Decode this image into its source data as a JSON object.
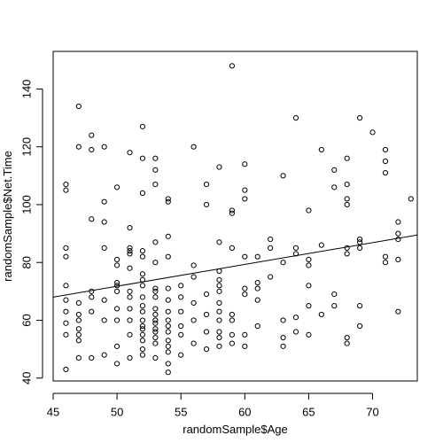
{
  "chart_data": {
    "type": "scatter",
    "title": "",
    "xlabel": "randomSample$Age",
    "ylabel": "randomSample$Net.Time",
    "xlim": [
      45,
      73.5
    ],
    "ylim": [
      39,
      153
    ],
    "x_ticks": [
      45,
      50,
      55,
      60,
      65,
      70
    ],
    "y_ticks": [
      40,
      60,
      80,
      100,
      120,
      140
    ],
    "x_tick_labels": [
      "45",
      "50",
      "55",
      "60",
      "65",
      "70"
    ],
    "y_tick_labels": [
      "40",
      "60",
      "80",
      "100",
      "120",
      "140"
    ],
    "grid": false,
    "legend": "none",
    "regression_line": {
      "x": [
        45,
        73.5
      ],
      "y": [
        68,
        89.5
      ]
    },
    "series": [
      {
        "points": [
          [
            46,
            43
          ],
          [
            46,
            55
          ],
          [
            46,
            59
          ],
          [
            46,
            63
          ],
          [
            46,
            67
          ],
          [
            46,
            72
          ],
          [
            46,
            82
          ],
          [
            46,
            85
          ],
          [
            46,
            105
          ],
          [
            46,
            107
          ],
          [
            47,
            47
          ],
          [
            47,
            53
          ],
          [
            47,
            55
          ],
          [
            47,
            57
          ],
          [
            47,
            60
          ],
          [
            47,
            62
          ],
          [
            47,
            66
          ],
          [
            47,
            120
          ],
          [
            47,
            134
          ],
          [
            48,
            47
          ],
          [
            48,
            63
          ],
          [
            48,
            68
          ],
          [
            48,
            70
          ],
          [
            48,
            95
          ],
          [
            48,
            119
          ],
          [
            48,
            124
          ],
          [
            49,
            48
          ],
          [
            49,
            60
          ],
          [
            49,
            67
          ],
          [
            49,
            85
          ],
          [
            49,
            94
          ],
          [
            49,
            101
          ],
          [
            49,
            120
          ],
          [
            50,
            45
          ],
          [
            50,
            51
          ],
          [
            50,
            60
          ],
          [
            50,
            64
          ],
          [
            50,
            70
          ],
          [
            50,
            72
          ],
          [
            50,
            73
          ],
          [
            50,
            79
          ],
          [
            50,
            81
          ],
          [
            50,
            106
          ],
          [
            51,
            47
          ],
          [
            51,
            55
          ],
          [
            51,
            60
          ],
          [
            51,
            64
          ],
          [
            51,
            68
          ],
          [
            51,
            70
          ],
          [
            51,
            78
          ],
          [
            51,
            83
          ],
          [
            51,
            84
          ],
          [
            51,
            85
          ],
          [
            51,
            92
          ],
          [
            51,
            118
          ],
          [
            52,
            48
          ],
          [
            52,
            50
          ],
          [
            52,
            53
          ],
          [
            52,
            55
          ],
          [
            52,
            57
          ],
          [
            52,
            58
          ],
          [
            52,
            60
          ],
          [
            52,
            63
          ],
          [
            52,
            65
          ],
          [
            52,
            68
          ],
          [
            52,
            72
          ],
          [
            52,
            74
          ],
          [
            52,
            76
          ],
          [
            52,
            82
          ],
          [
            52,
            84
          ],
          [
            52,
            104
          ],
          [
            52,
            116
          ],
          [
            52,
            127
          ],
          [
            53,
            47
          ],
          [
            53,
            52
          ],
          [
            53,
            54
          ],
          [
            53,
            56
          ],
          [
            53,
            57
          ],
          [
            53,
            59
          ],
          [
            53,
            60
          ],
          [
            53,
            62
          ],
          [
            53,
            64
          ],
          [
            53,
            68
          ],
          [
            53,
            70
          ],
          [
            53,
            71
          ],
          [
            53,
            80
          ],
          [
            53,
            87
          ],
          [
            53,
            107
          ],
          [
            53,
            112
          ],
          [
            53,
            116
          ],
          [
            54,
            42
          ],
          [
            54,
            45
          ],
          [
            54,
            49
          ],
          [
            54,
            51
          ],
          [
            54,
            53
          ],
          [
            54,
            56
          ],
          [
            54,
            58
          ],
          [
            54,
            60
          ],
          [
            54,
            63
          ],
          [
            54,
            67
          ],
          [
            54,
            71
          ],
          [
            54,
            82
          ],
          [
            54,
            89
          ],
          [
            54,
            101
          ],
          [
            54,
            102
          ],
          [
            55,
            48
          ],
          [
            55,
            55
          ],
          [
            55,
            58
          ],
          [
            55,
            63
          ],
          [
            55,
            68
          ],
          [
            55,
            72
          ],
          [
            56,
            52
          ],
          [
            56,
            60
          ],
          [
            56,
            66
          ],
          [
            56,
            75
          ],
          [
            56,
            79
          ],
          [
            56,
            120
          ],
          [
            57,
            50
          ],
          [
            57,
            56
          ],
          [
            57,
            62
          ],
          [
            57,
            69
          ],
          [
            57,
            100
          ],
          [
            57,
            107
          ],
          [
            58,
            51
          ],
          [
            58,
            54
          ],
          [
            58,
            56
          ],
          [
            58,
            60
          ],
          [
            58,
            63
          ],
          [
            58,
            66
          ],
          [
            58,
            70
          ],
          [
            58,
            72
          ],
          [
            58,
            74
          ],
          [
            58,
            77
          ],
          [
            58,
            87
          ],
          [
            58,
            113
          ],
          [
            59,
            52
          ],
          [
            59,
            55
          ],
          [
            59,
            60
          ],
          [
            59,
            62
          ],
          [
            59,
            85
          ],
          [
            59,
            97
          ],
          [
            59,
            98
          ],
          [
            59,
            148
          ],
          [
            60,
            51
          ],
          [
            60,
            55
          ],
          [
            60,
            69
          ],
          [
            60,
            71
          ],
          [
            60,
            82
          ],
          [
            60,
            102
          ],
          [
            60,
            105
          ],
          [
            60,
            114
          ],
          [
            61,
            58
          ],
          [
            61,
            67
          ],
          [
            61,
            71
          ],
          [
            61,
            73
          ],
          [
            61,
            82
          ],
          [
            62,
            75
          ],
          [
            62,
            85
          ],
          [
            62,
            88
          ],
          [
            63,
            51
          ],
          [
            63,
            54
          ],
          [
            63,
            60
          ],
          [
            63,
            80
          ],
          [
            63,
            110
          ],
          [
            64,
            56
          ],
          [
            64,
            61
          ],
          [
            64,
            83
          ],
          [
            64,
            85
          ],
          [
            64,
            130
          ],
          [
            65,
            55
          ],
          [
            65,
            65
          ],
          [
            65,
            72
          ],
          [
            65,
            79
          ],
          [
            65,
            81
          ],
          [
            65,
            98
          ],
          [
            66,
            62
          ],
          [
            66,
            86
          ],
          [
            66,
            119
          ],
          [
            67,
            65
          ],
          [
            67,
            69
          ],
          [
            67,
            106
          ],
          [
            67,
            112
          ],
          [
            68,
            52
          ],
          [
            68,
            54
          ],
          [
            68,
            83
          ],
          [
            68,
            85
          ],
          [
            68,
            100
          ],
          [
            68,
            102
          ],
          [
            68,
            107
          ],
          [
            68,
            116
          ],
          [
            69,
            58
          ],
          [
            69,
            65
          ],
          [
            69,
            85
          ],
          [
            69,
            87
          ],
          [
            69,
            88
          ],
          [
            69,
            130
          ],
          [
            70,
            125
          ],
          [
            71,
            80
          ],
          [
            71,
            82
          ],
          [
            71,
            111
          ],
          [
            71,
            115
          ],
          [
            71,
            119
          ],
          [
            72,
            63
          ],
          [
            72,
            81
          ],
          [
            72,
            88
          ],
          [
            72,
            90
          ],
          [
            72,
            94
          ],
          [
            73,
            102
          ]
        ]
      }
    ]
  }
}
